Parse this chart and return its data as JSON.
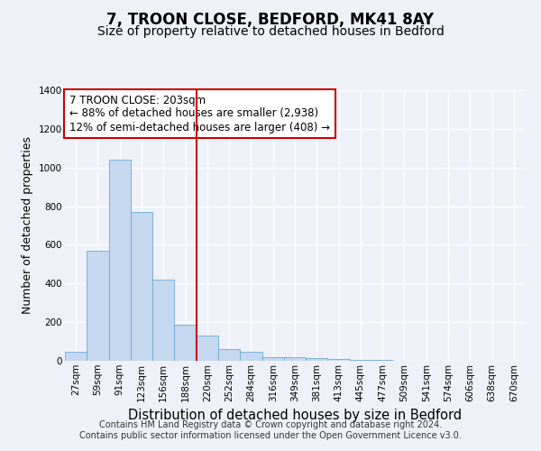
{
  "title": "7, TROON CLOSE, BEDFORD, MK41 8AY",
  "subtitle": "Size of property relative to detached houses in Bedford",
  "xlabel": "Distribution of detached houses by size in Bedford",
  "ylabel": "Number of detached properties",
  "categories": [
    "27sqm",
    "59sqm",
    "91sqm",
    "123sqm",
    "156sqm",
    "188sqm",
    "220sqm",
    "252sqm",
    "284sqm",
    "316sqm",
    "349sqm",
    "381sqm",
    "413sqm",
    "445sqm",
    "477sqm",
    "509sqm",
    "541sqm",
    "574sqm",
    "606sqm",
    "638sqm",
    "670sqm"
  ],
  "values": [
    48,
    570,
    1040,
    770,
    420,
    185,
    130,
    62,
    48,
    20,
    18,
    12,
    8,
    5,
    3,
    2,
    0,
    0,
    0,
    0,
    0
  ],
  "bar_color": "#c5d8f0",
  "bar_edge_color": "#6aaad4",
  "highlight_color": "#cc0000",
  "annotation_line1": "7 TROON CLOSE: 203sqm",
  "annotation_line2": "← 88% of detached houses are smaller (2,938)",
  "annotation_line3": "12% of semi-detached houses are larger (408) →",
  "annotation_box_color": "#ffffff",
  "annotation_box_edge_color": "#cc0000",
  "ylim": [
    0,
    1400
  ],
  "yticks": [
    0,
    200,
    400,
    600,
    800,
    1000,
    1200,
    1400
  ],
  "footer_line1": "Contains HM Land Registry data © Crown copyright and database right 2024.",
  "footer_line2": "Contains public sector information licensed under the Open Government Licence v3.0.",
  "background_color": "#eef2f8",
  "grid_color": "#ffffff",
  "title_fontsize": 12,
  "subtitle_fontsize": 10,
  "xlabel_fontsize": 10.5,
  "ylabel_fontsize": 9,
  "tick_fontsize": 7.5,
  "annotation_fontsize": 8.5,
  "footer_fontsize": 7
}
